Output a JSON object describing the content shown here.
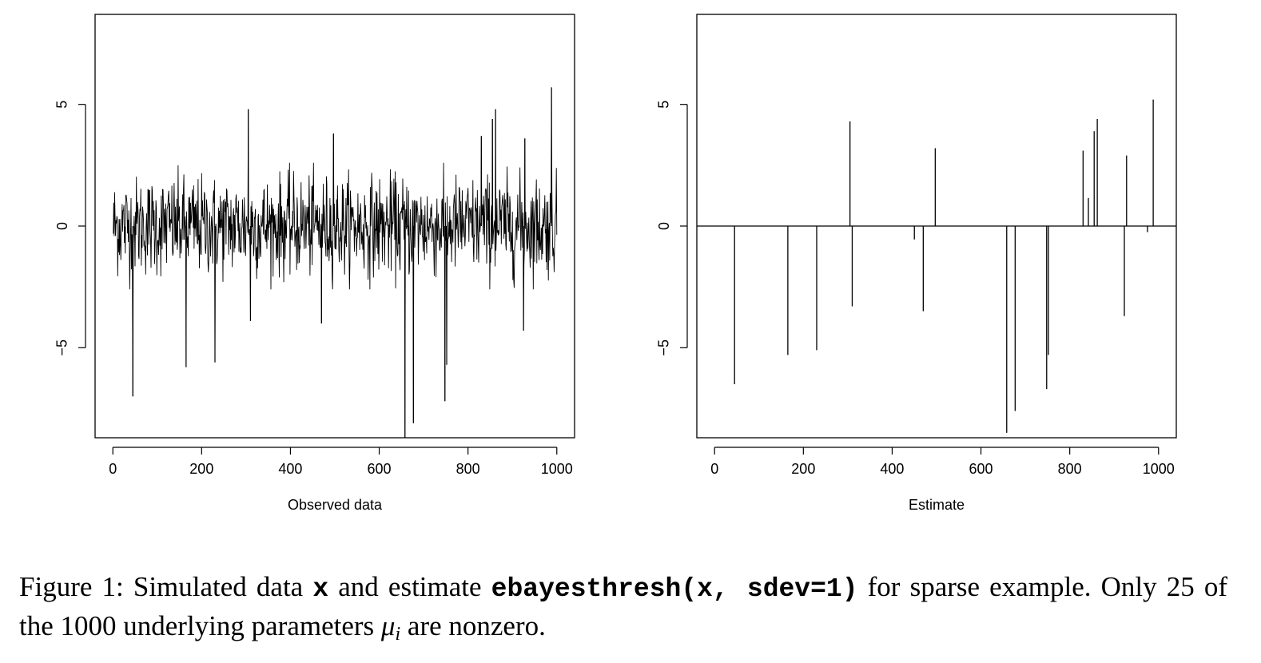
{
  "chart_data": [
    {
      "type": "bar",
      "id": "observed",
      "xlabel": "Observed data",
      "ylabel": "",
      "xlim": [
        -40,
        1040
      ],
      "ylim": [
        -8.7,
        8.7
      ],
      "xticks": [
        0,
        200,
        400,
        600,
        800,
        1000
      ],
      "xtick_labels": [
        "0",
        "200",
        "400",
        "600",
        "800",
        "1000"
      ],
      "yticks": [
        -5,
        0,
        5
      ],
      "ytick_labels": [
        "−5",
        "0",
        "5"
      ],
      "noise_sd": 1,
      "values_note": "",
      "spikes": [
        {
          "x": 45,
          "y": -7.0
        },
        {
          "x": 165,
          "y": -5.8
        },
        {
          "x": 230,
          "y": -5.6
        },
        {
          "x": 305,
          "y": 4.8
        },
        {
          "x": 310,
          "y": -3.9
        },
        {
          "x": 470,
          "y": -4.0
        },
        {
          "x": 497,
          "y": 3.8
        },
        {
          "x": 658,
          "y": -8.7
        },
        {
          "x": 677,
          "y": -8.1
        },
        {
          "x": 748,
          "y": -7.2
        },
        {
          "x": 752,
          "y": -5.7
        },
        {
          "x": 830,
          "y": 3.7
        },
        {
          "x": 855,
          "y": 4.4
        },
        {
          "x": 862,
          "y": 4.8
        },
        {
          "x": 925,
          "y": -4.3
        },
        {
          "x": 928,
          "y": 3.6
        },
        {
          "x": 988,
          "y": 5.7
        }
      ]
    },
    {
      "type": "bar",
      "id": "estimate",
      "xlabel": "Estimate",
      "ylabel": "",
      "xlim": [
        -40,
        1040
      ],
      "ylim": [
        -8.7,
        8.7
      ],
      "xticks": [
        0,
        200,
        400,
        600,
        800,
        1000
      ],
      "xtick_labels": [
        "0",
        "200",
        "400",
        "600",
        "800",
        "1000"
      ],
      "yticks": [
        -5,
        0,
        5
      ],
      "ytick_labels": [
        "−5",
        "0",
        "5"
      ],
      "baseline": 0,
      "values": [
        {
          "x": 45,
          "y": -6.5
        },
        {
          "x": 165,
          "y": -5.3
        },
        {
          "x": 230,
          "y": -5.1
        },
        {
          "x": 305,
          "y": 4.3
        },
        {
          "x": 310,
          "y": -3.3
        },
        {
          "x": 450,
          "y": -0.55
        },
        {
          "x": 470,
          "y": -3.5
        },
        {
          "x": 497,
          "y": 3.2
        },
        {
          "x": 658,
          "y": -8.5
        },
        {
          "x": 677,
          "y": -7.6
        },
        {
          "x": 748,
          "y": -6.7
        },
        {
          "x": 752,
          "y": -5.3
        },
        {
          "x": 830,
          "y": 3.1
        },
        {
          "x": 842,
          "y": 1.15
        },
        {
          "x": 855,
          "y": 3.9
        },
        {
          "x": 862,
          "y": 4.4
        },
        {
          "x": 923,
          "y": -3.7
        },
        {
          "x": 928,
          "y": 2.9
        },
        {
          "x": 975,
          "y": -0.25
        },
        {
          "x": 988,
          "y": 5.2
        }
      ]
    }
  ],
  "caption": {
    "part1": "Figure 1:  Simulated data ",
    "code1": "x",
    "part2": " and estimate ",
    "code2": "ebayesthresh(x, sdev=1)",
    "part3": " for sparse example. Only 25 of the 1000 underlying parameters ",
    "mu": "μ",
    "sub": "i",
    "part4": " are nonzero."
  }
}
